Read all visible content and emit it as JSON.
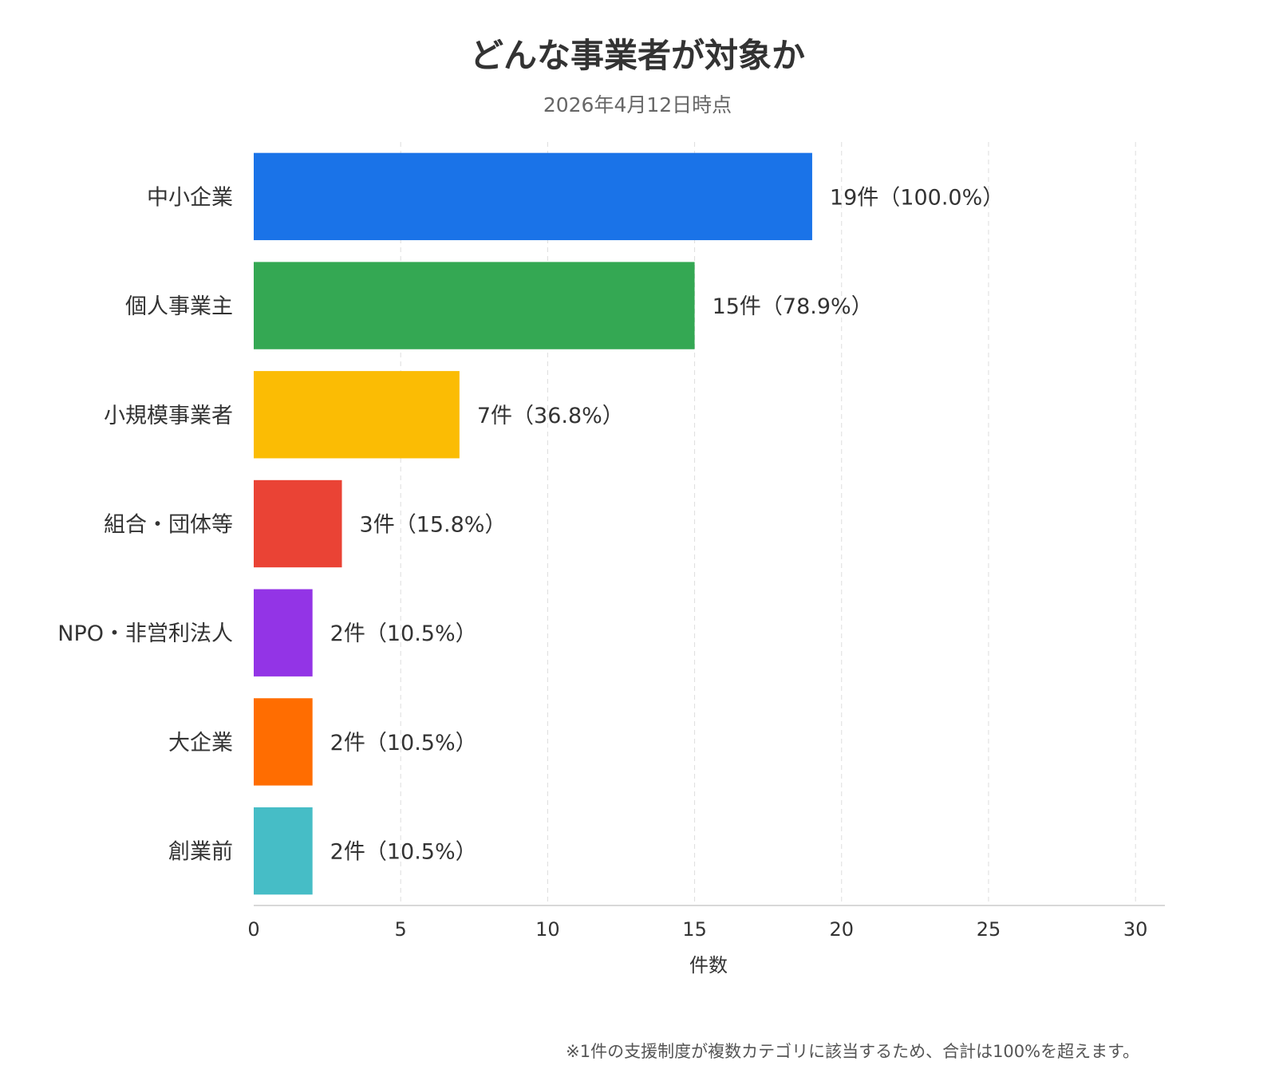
{
  "chart_data": {
    "type": "bar",
    "orientation": "horizontal",
    "title": "どんな事業者が対象か",
    "subtitle": "2026年4月12日時点",
    "xlabel": "件数",
    "ylabel": "",
    "xlim": [
      0,
      31
    ],
    "xticks": [
      0,
      5,
      10,
      15,
      20,
      25,
      30
    ],
    "grid": true,
    "legend": "none",
    "categories": [
      "中小企業",
      "個人事業主",
      "小規模事業者",
      "組合・団体等",
      "NPO・非営利法人",
      "大企業",
      "創業前"
    ],
    "values": [
      19,
      15,
      7,
      3,
      2,
      2,
      2
    ],
    "value_labels": [
      "19件（100.0%）",
      "15件（78.9%）",
      "7件（36.8%）",
      "3件（15.8%）",
      "2件（10.5%）",
      "2件（10.5%）",
      "2件（10.5%）"
    ],
    "colors": [
      "#1A73E8",
      "#34A853",
      "#FBBC04",
      "#EA4335",
      "#9334E6",
      "#FF6D01",
      "#46BDC6"
    ]
  },
  "footnote": "※1件の支援制度が複数カテゴリに該当するため、合計は100%を超えます。"
}
